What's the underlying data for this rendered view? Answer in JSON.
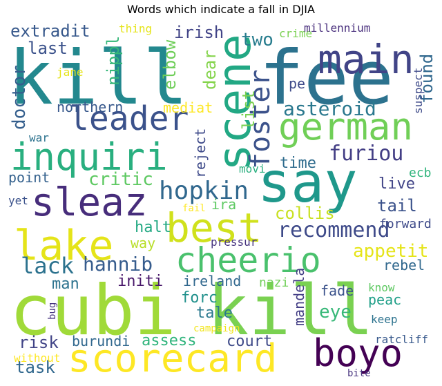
{
  "title": "Words which indicate a fall in DJIA",
  "palette": "viridis",
  "words": [
    {
      "text": "kill",
      "color": "#23888e"
    },
    {
      "text": "fee",
      "color": "#2c728e"
    },
    {
      "text": "cubi",
      "color": "#a0da39"
    },
    {
      "text": "kill",
      "color": "#7ad151"
    },
    {
      "text": "say",
      "color": "#1f988b"
    },
    {
      "text": "scorecard",
      "color": "#fde725"
    },
    {
      "text": "main",
      "color": "#414487"
    },
    {
      "text": "german",
      "color": "#70cf57"
    },
    {
      "text": "scene",
      "color": "#22a884"
    },
    {
      "text": "leader",
      "color": "#3b528b"
    },
    {
      "text": "inquiri",
      "color": "#29af7f"
    },
    {
      "text": "sleaz",
      "color": "#472d7b"
    },
    {
      "text": "lake",
      "color": "#e5e419"
    },
    {
      "text": "best",
      "color": "#d0e11c"
    },
    {
      "text": "cheerio",
      "color": "#4ac16d"
    },
    {
      "text": "boyo",
      "color": "#440154"
    },
    {
      "text": "foster",
      "color": "#3b528b"
    },
    {
      "text": "hopkin",
      "color": "#31688e"
    },
    {
      "text": "recommend",
      "color": "#3e4a89"
    },
    {
      "text": "furiou",
      "color": "#433e85"
    },
    {
      "text": "asteroid",
      "color": "#2a788e"
    },
    {
      "text": "lack",
      "color": "#2c728e"
    },
    {
      "text": "hannib",
      "color": "#365c8d"
    },
    {
      "text": "critic",
      "color": "#5ec962"
    },
    {
      "text": "appetit",
      "color": "#e5e419"
    },
    {
      "text": "collis",
      "color": "#c8e020"
    },
    {
      "text": "tail",
      "color": "#3b528b"
    },
    {
      "text": "extradit",
      "color": "#38598c"
    },
    {
      "text": "irish",
      "color": "#414487"
    },
    {
      "text": "two",
      "color": "#287d8e"
    },
    {
      "text": "found",
      "color": "#31688e"
    },
    {
      "text": "last",
      "color": "#3b528b"
    },
    {
      "text": "doctor",
      "color": "#355f8d"
    },
    {
      "text": "nippl",
      "color": "#35b779"
    },
    {
      "text": "elbow",
      "color": "#6ece58"
    },
    {
      "text": "dear",
      "color": "#84d44b"
    },
    {
      "text": "list",
      "color": "#7ad151"
    },
    {
      "text": "pe",
      "color": "#3e4a89"
    },
    {
      "text": "northern",
      "color": "#38598c"
    },
    {
      "text": "mediat",
      "color": "#fde725"
    },
    {
      "text": "reject",
      "color": "#3e4a89"
    },
    {
      "text": "time",
      "color": "#2f6c8e"
    },
    {
      "text": "live",
      "color": "#414487"
    },
    {
      "text": "ecb",
      "color": "#2fb47c"
    },
    {
      "text": "point",
      "color": "#34618d"
    },
    {
      "text": "ira",
      "color": "#5ec962"
    },
    {
      "text": "halt",
      "color": "#23a983"
    },
    {
      "text": "way",
      "color": "#b8de29"
    },
    {
      "text": "forward",
      "color": "#3e4a89"
    },
    {
      "text": "pressur",
      "color": "#46337e"
    },
    {
      "text": "rebel",
      "color": "#31688e"
    },
    {
      "text": "man",
      "color": "#2c728e"
    },
    {
      "text": "initi",
      "color": "#48186a"
    },
    {
      "text": "ireland",
      "color": "#31688e"
    },
    {
      "text": "nazi",
      "color": "#70cf57"
    },
    {
      "text": "mandela",
      "color": "#433e85"
    },
    {
      "text": "forc",
      "color": "#21918c"
    },
    {
      "text": "tale",
      "color": "#2a788e"
    },
    {
      "text": "fade",
      "color": "#3b528b"
    },
    {
      "text": "eye",
      "color": "#37b878"
    },
    {
      "text": "peac",
      "color": "#1f9f88"
    },
    {
      "text": "know",
      "color": "#5ec962"
    },
    {
      "text": "keep",
      "color": "#2c728e"
    },
    {
      "text": "risk",
      "color": "#414487"
    },
    {
      "text": "burundi",
      "color": "#31688e"
    },
    {
      "text": "assess",
      "color": "#2fb47c"
    },
    {
      "text": "court",
      "color": "#3e4a89"
    },
    {
      "text": "task",
      "color": "#31688e"
    },
    {
      "text": "campaign",
      "color": "#f1e51d"
    },
    {
      "text": "without",
      "color": "#fde725"
    },
    {
      "text": "bug",
      "color": "#46337e"
    },
    {
      "text": "ratcliff",
      "color": "#38598c"
    },
    {
      "text": "bite",
      "color": "#46337e"
    },
    {
      "text": "thing",
      "color": "#e5e419"
    },
    {
      "text": "crime",
      "color": "#7ad151"
    },
    {
      "text": "millennium",
      "color": "#472d7b"
    },
    {
      "text": "jane",
      "color": "#e5e419"
    },
    {
      "text": "war",
      "color": "#2c728e"
    },
    {
      "text": "yet",
      "color": "#3b528b"
    },
    {
      "text": "movi",
      "color": "#29af7f"
    },
    {
      "text": "fail",
      "color": "#fde725"
    },
    {
      "text": "suspect",
      "color": "#3e4a89"
    }
  ]
}
